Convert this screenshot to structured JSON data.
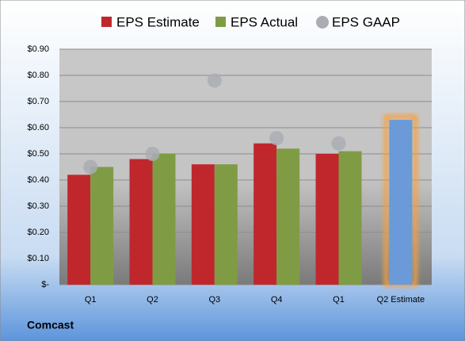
{
  "chart_data": {
    "type": "bar",
    "categories": [
      "Q1",
      "Q2",
      "Q3",
      "Q4",
      "Q1",
      "Q2 Estimate"
    ],
    "series": [
      {
        "name": "EPS Estimate",
        "color": "#c0272d",
        "values": [
          0.42,
          0.48,
          0.46,
          0.54,
          0.5,
          null
        ]
      },
      {
        "name": "EPS Actual",
        "color": "#7f9c45",
        "values": [
          0.45,
          0.5,
          0.46,
          0.52,
          0.51,
          null
        ]
      },
      {
        "name": "EPS GAAP",
        "color": "#a9adb3",
        "marker": "circle",
        "values": [
          0.45,
          0.5,
          0.78,
          0.56,
          0.54,
          null
        ]
      },
      {
        "color": "#6a9bd8",
        "highlight": "#f5a040",
        "values": [
          null,
          null,
          null,
          null,
          null,
          0.63
        ]
      }
    ],
    "ylim": [
      0,
      0.9
    ],
    "yticks": [
      {
        "value": 0,
        "label": "$-"
      },
      {
        "value": 0.1,
        "label": "$0.10"
      },
      {
        "value": 0.2,
        "label": "$0.20"
      },
      {
        "value": 0.3,
        "label": "$0.30"
      },
      {
        "value": 0.4,
        "label": "$0.40"
      },
      {
        "value": 0.5,
        "label": "$0.50"
      },
      {
        "value": 0.6,
        "label": "$0.60"
      },
      {
        "value": 0.7,
        "label": "$0.70"
      },
      {
        "value": 0.8,
        "label": "$0.80"
      },
      {
        "value": 0.9,
        "label": "$0.90"
      }
    ],
    "grid": true,
    "footer": "Comcast"
  }
}
